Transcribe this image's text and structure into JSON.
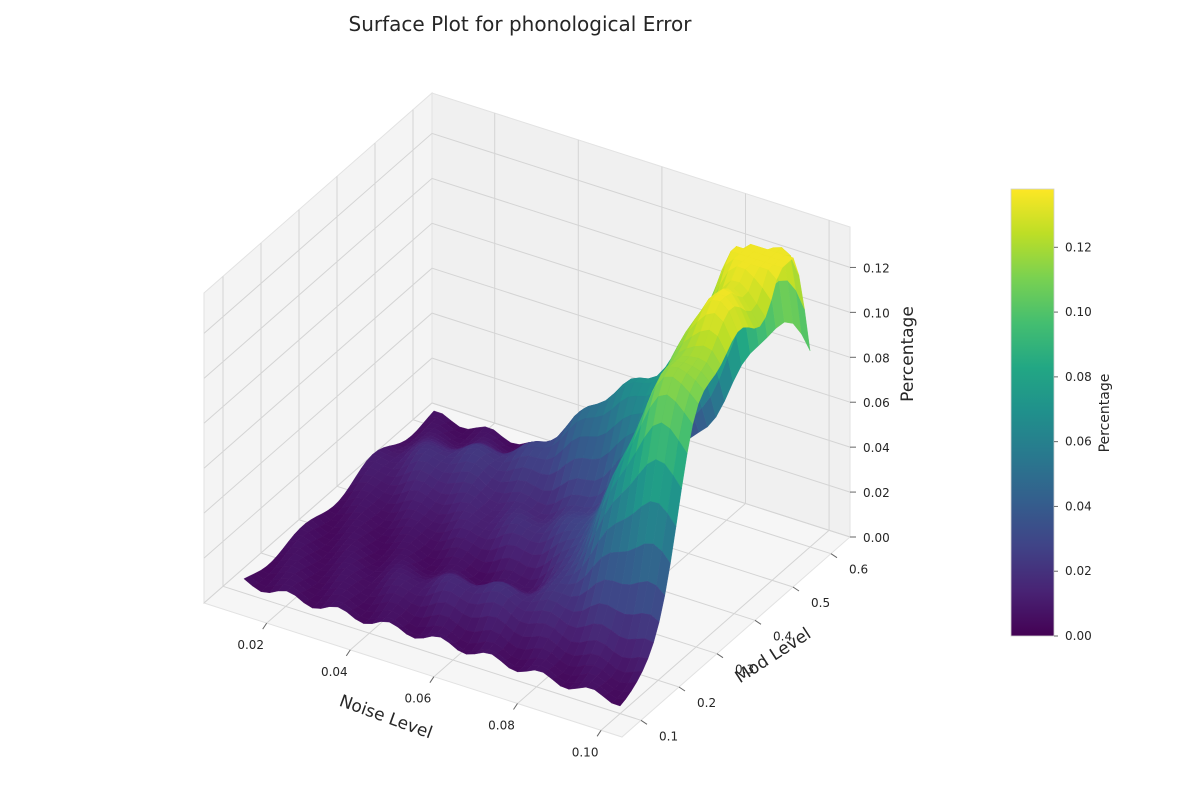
{
  "chart_data": {
    "type": "surface3d",
    "title": "Surface Plot for phonological Error",
    "xlabel": "Noise Level",
    "ylabel": "Mod Level",
    "zlabel": "Percentage",
    "colorbar_label": "Percentage",
    "colormap": "viridis",
    "xlim": [
      0.005,
      0.105
    ],
    "ylim": [
      0.05,
      0.65
    ],
    "zlim": [
      0.0,
      0.138
    ],
    "x_ticks": [
      "0.02",
      "0.04",
      "0.06",
      "0.08",
      "0.10"
    ],
    "y_ticks": [
      "0.1",
      "0.2",
      "0.3",
      "0.4",
      "0.5",
      "0.6"
    ],
    "z_ticks": [
      "0.00",
      "0.02",
      "0.04",
      "0.06",
      "0.08",
      "0.10",
      "0.12"
    ],
    "colorbar_ticks": [
      "0.00",
      "0.02",
      "0.04",
      "0.06",
      "0.08",
      "0.10",
      "0.12"
    ],
    "colorbar_range": [
      0.0,
      0.138
    ],
    "grid": true,
    "peaks": [
      {
        "noise": 0.095,
        "mod": 0.55,
        "value": 0.135
      },
      {
        "noise": 0.095,
        "mod": 0.42,
        "value": 0.112
      },
      {
        "noise": 0.095,
        "mod": 0.3,
        "value": 0.098
      },
      {
        "noise": 0.065,
        "mod": 0.5,
        "value": 0.04
      },
      {
        "noise": 0.03,
        "mod": 0.45,
        "value": 0.015
      }
    ]
  }
}
